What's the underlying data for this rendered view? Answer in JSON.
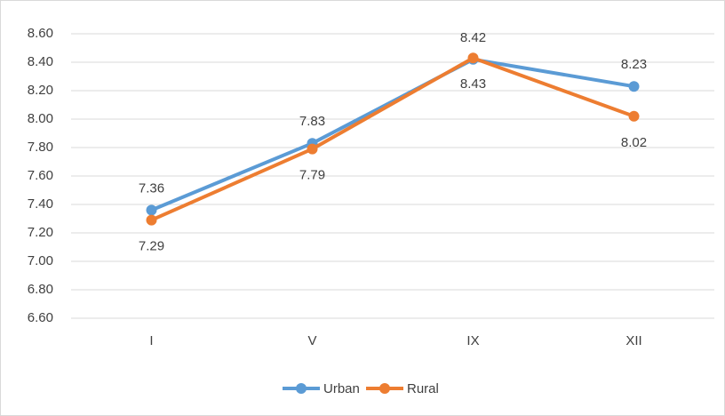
{
  "chart_data": {
    "type": "line",
    "categories": [
      "I",
      "V",
      "IX",
      "XII"
    ],
    "series": [
      {
        "name": "Urban",
        "color": "#5b9bd5",
        "values": [
          7.36,
          7.83,
          8.42,
          8.23
        ]
      },
      {
        "name": "Rural",
        "color": "#ed7d31",
        "values": [
          7.29,
          7.79,
          8.43,
          8.02
        ]
      }
    ],
    "ylim": [
      6.6,
      8.6
    ],
    "yticks": [
      {
        "value": 6.6,
        "label": "6.60"
      },
      {
        "value": 6.8,
        "label": "6.80"
      },
      {
        "value": 7.0,
        "label": "7.00"
      },
      {
        "value": 7.2,
        "label": "7.20"
      },
      {
        "value": 7.4,
        "label": "7.40"
      },
      {
        "value": 7.6,
        "label": "7.60"
      },
      {
        "value": 7.8,
        "label": "7.80"
      },
      {
        "value": 8.0,
        "label": "8.00"
      },
      {
        "value": 8.2,
        "label": "8.20"
      },
      {
        "value": 8.4,
        "label": "8.40"
      },
      {
        "value": 8.6,
        "label": "8.60"
      }
    ],
    "grid": true,
    "legend": "bottom"
  }
}
